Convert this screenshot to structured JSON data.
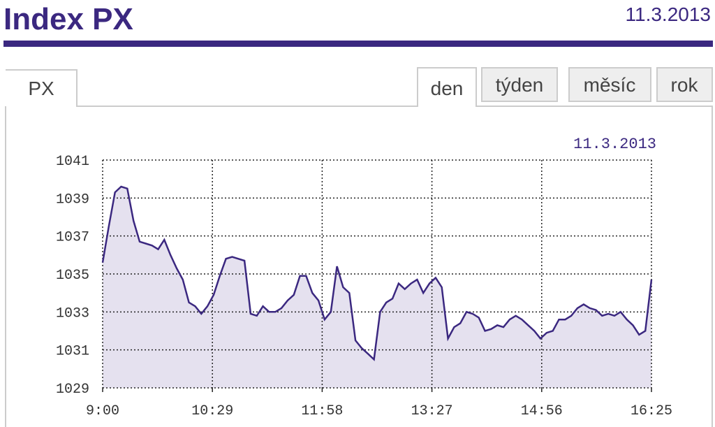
{
  "header": {
    "title": "Index PX",
    "date": "11.3.2013"
  },
  "tabs": {
    "left": "PX",
    "right": [
      "den",
      "týden",
      "měsíc",
      "rok"
    ]
  },
  "chart_data": {
    "type": "line",
    "date_label": "11.3.2013",
    "x": [
      540,
      545,
      550,
      555,
      560,
      565,
      570,
      575,
      580,
      585,
      590,
      595,
      600,
      605,
      610,
      615,
      620,
      625,
      630,
      635,
      640,
      645,
      650,
      655,
      660,
      665,
      670,
      675,
      680,
      685,
      690,
      695,
      700,
      705,
      710,
      715,
      720,
      725,
      730,
      735,
      740,
      745,
      750,
      755,
      760,
      765,
      770,
      775,
      780,
      785,
      790,
      795,
      800,
      805,
      810,
      815,
      820,
      825,
      830,
      835,
      840,
      845,
      850,
      855,
      860,
      865,
      870,
      875,
      880,
      885,
      890,
      895,
      900,
      905,
      910,
      915,
      920,
      925,
      930,
      935,
      940,
      945,
      950,
      955,
      960,
      965,
      970,
      975,
      980,
      985
    ],
    "values": [
      1035.6,
      1037.5,
      1039.3,
      1039.6,
      1039.5,
      1037.8,
      1036.7,
      1036.6,
      1036.5,
      1036.3,
      1036.8,
      1036.0,
      1035.3,
      1034.7,
      1033.5,
      1033.3,
      1032.9,
      1033.3,
      1033.9,
      1034.9,
      1035.8,
      1035.9,
      1035.8,
      1035.7,
      1032.9,
      1032.8,
      1033.3,
      1033.0,
      1033.0,
      1033.2,
      1033.6,
      1033.9,
      1034.9,
      1034.9,
      1034.0,
      1033.6,
      1032.6,
      1033.0,
      1035.4,
      1034.3,
      1034.0,
      1031.5,
      1031.1,
      1030.8,
      1030.5,
      1033.0,
      1033.5,
      1033.7,
      1034.5,
      1034.2,
      1034.5,
      1034.7,
      1034.0,
      1034.5,
      1034.8,
      1034.3,
      1031.6,
      1032.2,
      1032.4,
      1033.0,
      1032.9,
      1032.7,
      1032.0,
      1032.1,
      1032.3,
      1032.2,
      1032.6,
      1032.8,
      1032.6,
      1032.3,
      1032.0,
      1031.6,
      1031.9,
      1032.0,
      1032.6,
      1032.6,
      1032.8,
      1033.2,
      1033.4,
      1033.2,
      1033.1,
      1032.8,
      1032.9,
      1032.8,
      1033.0,
      1032.6,
      1032.3,
      1031.8,
      1032.0,
      1034.7
    ],
    "color": "#3b2880",
    "fill_color": "#e5e1ef",
    "grid": true,
    "xlim": [
      540,
      985
    ],
    "xticks": [
      {
        "value": 540,
        "label": "9:00"
      },
      {
        "value": 629,
        "label": "10:29"
      },
      {
        "value": 718,
        "label": "11:58"
      },
      {
        "value": 807,
        "label": "13:27"
      },
      {
        "value": 896,
        "label": "14:56"
      },
      {
        "value": 985,
        "label": "16:25"
      }
    ],
    "ylim": [
      1029,
      1041
    ],
    "yticks": [
      1029,
      1031,
      1033,
      1035,
      1037,
      1039,
      1041
    ]
  }
}
